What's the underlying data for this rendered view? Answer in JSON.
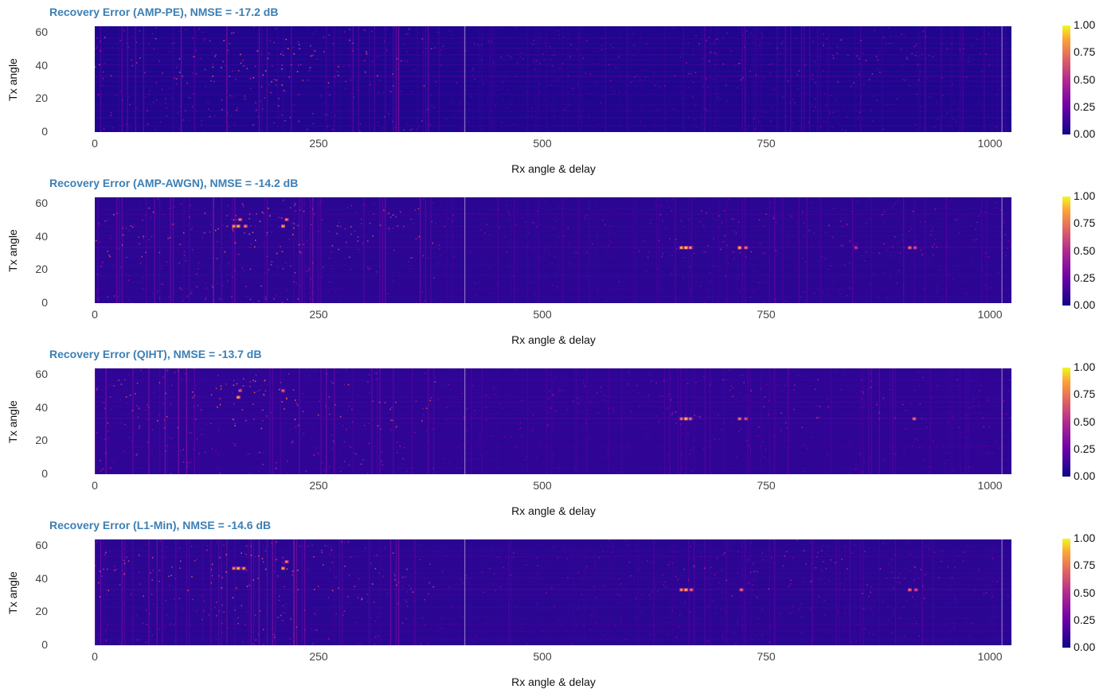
{
  "chart_data": [
    {
      "type": "heatmap",
      "title": "Recovery Error (AMP-PE), NMSE = -17.2 dB",
      "xlabel": "Rx angle & delay",
      "ylabel": "Tx angle",
      "xlim": [
        0,
        1024
      ],
      "ylim": [
        0,
        64
      ],
      "x_ticks": [
        "0",
        "250",
        "500",
        "750",
        "1000"
      ],
      "y_ticks": [
        "0",
        "20",
        "40",
        "60"
      ],
      "colorbar": {
        "range": [
          0,
          1
        ],
        "ticks": [
          "0.00",
          "0.25",
          "0.50",
          "0.75",
          "1.00"
        ],
        "colormap": "plasma"
      },
      "hotspots": [],
      "background_level": 0.04
    },
    {
      "type": "heatmap",
      "title": "Recovery Error (AMP-AWGN), NMSE = -14.2 dB",
      "xlabel": "Rx angle & delay",
      "ylabel": "Tx angle",
      "xlim": [
        0,
        1024
      ],
      "ylim": [
        0,
        64
      ],
      "x_ticks": [
        "0",
        "250",
        "500",
        "750",
        "1000"
      ],
      "y_ticks": [
        "0",
        "20",
        "40",
        "60"
      ],
      "colorbar": {
        "range": [
          0,
          1
        ],
        "ticks": [
          "0.00",
          "0.25",
          "0.50",
          "0.75",
          "1.00"
        ],
        "colormap": "plasma"
      },
      "hotspots": [
        {
          "x": 155,
          "y": 46,
          "v": 0.8
        },
        {
          "x": 160,
          "y": 46,
          "v": 0.9
        },
        {
          "x": 162,
          "y": 50,
          "v": 0.7
        },
        {
          "x": 168,
          "y": 46,
          "v": 0.75
        },
        {
          "x": 210,
          "y": 46,
          "v": 0.85
        },
        {
          "x": 214,
          "y": 50,
          "v": 0.7
        },
        {
          "x": 655,
          "y": 33,
          "v": 0.9
        },
        {
          "x": 660,
          "y": 33,
          "v": 1.0
        },
        {
          "x": 665,
          "y": 33,
          "v": 0.8
        },
        {
          "x": 720,
          "y": 33,
          "v": 0.9
        },
        {
          "x": 727,
          "y": 33,
          "v": 0.7
        },
        {
          "x": 850,
          "y": 33,
          "v": 0.5
        },
        {
          "x": 910,
          "y": 33,
          "v": 0.7
        },
        {
          "x": 916,
          "y": 33,
          "v": 0.6
        }
      ],
      "background_level": 0.06
    },
    {
      "type": "heatmap",
      "title": "Recovery Error (QIHT), NMSE = -13.7 dB",
      "xlabel": "Rx angle & delay",
      "ylabel": "Tx angle",
      "xlim": [
        0,
        1024
      ],
      "ylim": [
        0,
        64
      ],
      "x_ticks": [
        "0",
        "250",
        "500",
        "750",
        "1000"
      ],
      "y_ticks": [
        "0",
        "20",
        "40",
        "60"
      ],
      "colorbar": {
        "range": [
          0,
          1
        ],
        "ticks": [
          "0.00",
          "0.25",
          "0.50",
          "0.75",
          "1.00"
        ],
        "colormap": "plasma"
      },
      "hotspots": [
        {
          "x": 160,
          "y": 46,
          "v": 0.85
        },
        {
          "x": 162,
          "y": 50,
          "v": 0.6
        },
        {
          "x": 210,
          "y": 50,
          "v": 0.6
        },
        {
          "x": 655,
          "y": 33,
          "v": 0.7
        },
        {
          "x": 660,
          "y": 33,
          "v": 0.95
        },
        {
          "x": 665,
          "y": 33,
          "v": 0.7
        },
        {
          "x": 720,
          "y": 33,
          "v": 0.7
        },
        {
          "x": 727,
          "y": 33,
          "v": 0.6
        },
        {
          "x": 915,
          "y": 33,
          "v": 0.7
        }
      ],
      "background_level": 0.07
    },
    {
      "type": "heatmap",
      "title": "Recovery Error (L1-Min), NMSE = -14.6 dB",
      "xlabel": "Rx angle & delay",
      "ylabel": "Tx angle",
      "xlim": [
        0,
        1024
      ],
      "ylim": [
        0,
        64
      ],
      "x_ticks": [
        "0",
        "250",
        "500",
        "750",
        "1000"
      ],
      "y_ticks": [
        "0",
        "20",
        "40",
        "60"
      ],
      "colorbar": {
        "range": [
          0,
          1
        ],
        "ticks": [
          "0.00",
          "0.25",
          "0.50",
          "0.75",
          "1.00"
        ],
        "colormap": "plasma"
      },
      "hotspots": [
        {
          "x": 155,
          "y": 46,
          "v": 0.75
        },
        {
          "x": 160,
          "y": 46,
          "v": 0.9
        },
        {
          "x": 166,
          "y": 46,
          "v": 0.8
        },
        {
          "x": 210,
          "y": 46,
          "v": 0.8
        },
        {
          "x": 214,
          "y": 50,
          "v": 0.7
        },
        {
          "x": 655,
          "y": 33,
          "v": 0.8
        },
        {
          "x": 660,
          "y": 33,
          "v": 0.9
        },
        {
          "x": 666,
          "y": 33,
          "v": 0.7
        },
        {
          "x": 722,
          "y": 33,
          "v": 0.7
        },
        {
          "x": 910,
          "y": 33,
          "v": 0.7
        },
        {
          "x": 917,
          "y": 33,
          "v": 0.6
        }
      ],
      "background_level": 0.06
    }
  ]
}
